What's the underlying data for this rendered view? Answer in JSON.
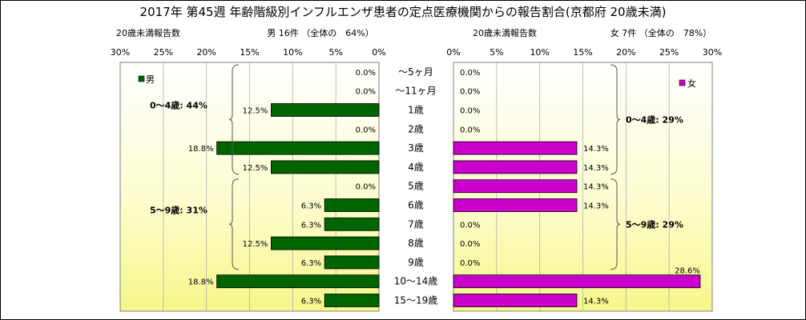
{
  "chart_data": {
    "type": "bar",
    "title": "2017年 第45週 年齢階級別インフルエンザ患者の定点医療機関からの報告割合(京都府 20歳未満)",
    "categories": [
      "〜5ヶ月",
      "〜11ヶ月",
      "1歳",
      "2歳",
      "3歳",
      "4歳",
      "5歳",
      "6歳",
      "7歳",
      "8歳",
      "9歳",
      "10〜14歳",
      "15〜19歳"
    ],
    "xlim": [
      0,
      30
    ],
    "tick_labels": [
      "0%",
      "5%",
      "10%",
      "15%",
      "20%",
      "25%",
      "30%"
    ],
    "grid": true,
    "male": {
      "axis_caption": "20歳未満報告数",
      "header": "男 16件 （全体の　64%）",
      "legend": "男",
      "legend_position": "top-left",
      "color": "#006400",
      "values": [
        0.0,
        0.0,
        12.5,
        0.0,
        18.8,
        12.5,
        0.0,
        6.3,
        6.3,
        12.5,
        6.3,
        18.8,
        6.3
      ],
      "labels": [
        "0.0%",
        "0.0%",
        "12.5%",
        "0.0%",
        "18.8%",
        "12.5%",
        "0.0%",
        "6.3%",
        "6.3%",
        "12.5%",
        "6.3%",
        "18.8%",
        "6.3%"
      ],
      "groups": [
        {
          "label": "0〜4歳: 44%",
          "from": 0,
          "to": 5
        },
        {
          "label": "5〜9歳: 31%",
          "from": 6,
          "to": 10
        }
      ]
    },
    "female": {
      "axis_caption": "20歳未満報告数",
      "header": "女 7件 （全体の　78%）",
      "legend": "女",
      "legend_position": "top-right",
      "color": "#cc00cc",
      "values": [
        0.0,
        0.0,
        0.0,
        0.0,
        14.3,
        14.3,
        14.3,
        14.3,
        0.0,
        0.0,
        0.0,
        28.6,
        14.3
      ],
      "labels": [
        "0.0%",
        "0.0%",
        "0.0%",
        "0.0%",
        "14.3%",
        "14.3%",
        "14.3%",
        "14.3%",
        "0.0%",
        "0.0%",
        "0.0%",
        "28.6%",
        "14.3%"
      ],
      "groups": [
        {
          "label": "0〜4歳: 29%",
          "from": 0,
          "to": 5
        },
        {
          "label": "5〜9歳: 29%",
          "from": 6,
          "to": 10
        }
      ]
    }
  }
}
